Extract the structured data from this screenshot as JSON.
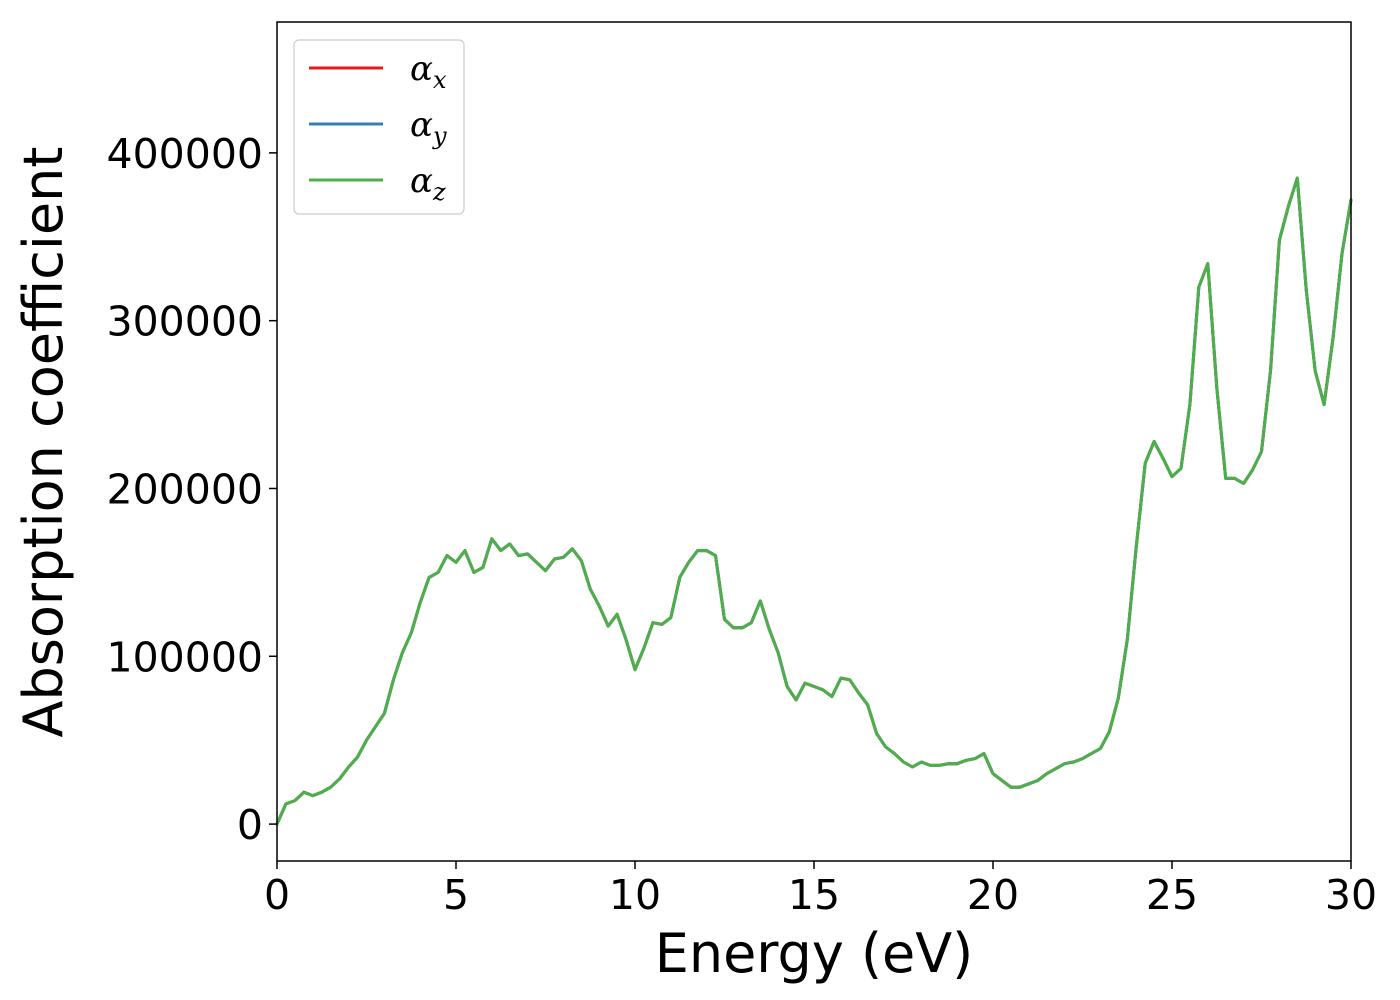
{
  "chart_data": {
    "type": "line",
    "xlabel": "Energy (eV)",
    "ylabel": "Absorption coefficient",
    "xlim": [
      0,
      30
    ],
    "ylim": [
      -22000,
      478000
    ],
    "xticks": [
      0,
      5,
      10,
      15,
      20,
      25,
      30
    ],
    "yticks": [
      0,
      100000,
      200000,
      300000,
      400000
    ],
    "grid": false,
    "legend_position": "top-left",
    "x": [
      0,
      0.25,
      0.5,
      0.75,
      1.0,
      1.25,
      1.5,
      1.75,
      2.0,
      2.25,
      2.5,
      2.75,
      3.0,
      3.25,
      3.5,
      3.75,
      4.0,
      4.25,
      4.5,
      4.75,
      5.0,
      5.25,
      5.5,
      5.75,
      6.0,
      6.25,
      6.5,
      6.75,
      7.0,
      7.25,
      7.5,
      7.75,
      8.0,
      8.25,
      8.5,
      8.75,
      9.0,
      9.25,
      9.5,
      9.75,
      10.0,
      10.25,
      10.5,
      10.75,
      11.0,
      11.25,
      11.5,
      11.75,
      12.0,
      12.25,
      12.5,
      12.75,
      13.0,
      13.25,
      13.5,
      13.75,
      14.0,
      14.25,
      14.5,
      14.75,
      15.0,
      15.25,
      15.5,
      15.75,
      16.0,
      16.25,
      16.5,
      16.75,
      17.0,
      17.25,
      17.5,
      17.75,
      18.0,
      18.25,
      18.5,
      18.75,
      19.0,
      19.25,
      19.5,
      19.75,
      20.0,
      20.25,
      20.5,
      20.75,
      21.0,
      21.25,
      21.5,
      21.75,
      22.0,
      22.25,
      22.5,
      22.75,
      23.0,
      23.25,
      23.5,
      23.75,
      24.0,
      24.25,
      24.5,
      24.75,
      25.0,
      25.25,
      25.5,
      25.75,
      26.0,
      26.25,
      26.5,
      26.75,
      27.0,
      27.25,
      27.5,
      27.75,
      28.0,
      28.25,
      28.5,
      28.75,
      29.0,
      29.25,
      29.5,
      29.75,
      30.0
    ],
    "series": [
      {
        "name_base": "α",
        "name_sub": "x",
        "color": "#e41a1c",
        "values": [
          0,
          12000,
          14000,
          19000,
          17000,
          19000,
          22000,
          27000,
          34000,
          40000,
          50000,
          58000,
          66000,
          86000,
          102000,
          114000,
          132000,
          147000,
          150000,
          160000,
          156000,
          163000,
          150000,
          153000,
          170000,
          163000,
          167000,
          160000,
          161000,
          156000,
          151000,
          158000,
          159000,
          164000,
          157000,
          140000,
          130000,
          118000,
          125000,
          110000,
          92000,
          105000,
          120000,
          119000,
          123000,
          147000,
          156000,
          163000,
          163000,
          160000,
          122000,
          117000,
          117000,
          120000,
          133000,
          116000,
          102000,
          82000,
          74000,
          84000,
          82000,
          80000,
          76000,
          87000,
          86000,
          78000,
          71000,
          54000,
          46000,
          42000,
          37000,
          34000,
          37000,
          35000,
          35000,
          36000,
          36000,
          38000,
          39000,
          42000,
          30000,
          26000,
          22000,
          22000,
          24000,
          26000,
          30000,
          33000,
          36000,
          37000,
          39000,
          42000,
          45000,
          55000,
          75000,
          110000,
          165000,
          215000,
          228000,
          218000,
          207000,
          212000,
          250000,
          320000,
          334000,
          260000,
          206000,
          206000,
          203000,
          211000,
          222000,
          270000,
          348000,
          368000,
          385000,
          318000,
          270000,
          250000,
          290000,
          340000,
          372000
        ]
      },
      {
        "name_base": "α",
        "name_sub": "y",
        "color": "#377eb8",
        "values": [
          0,
          12000,
          14000,
          19000,
          17000,
          19000,
          22000,
          27000,
          34000,
          40000,
          50000,
          58000,
          66000,
          86000,
          102000,
          114000,
          132000,
          147000,
          150000,
          160000,
          156000,
          163000,
          150000,
          153000,
          170000,
          163000,
          167000,
          160000,
          161000,
          156000,
          151000,
          158000,
          159000,
          164000,
          157000,
          140000,
          130000,
          118000,
          125000,
          110000,
          92000,
          105000,
          120000,
          119000,
          123000,
          147000,
          156000,
          163000,
          163000,
          160000,
          122000,
          117000,
          117000,
          120000,
          133000,
          116000,
          102000,
          82000,
          74000,
          84000,
          82000,
          80000,
          76000,
          87000,
          86000,
          78000,
          71000,
          54000,
          46000,
          42000,
          37000,
          34000,
          37000,
          35000,
          35000,
          36000,
          36000,
          38000,
          39000,
          42000,
          30000,
          26000,
          22000,
          22000,
          24000,
          26000,
          30000,
          33000,
          36000,
          37000,
          39000,
          42000,
          45000,
          55000,
          75000,
          110000,
          165000,
          215000,
          228000,
          218000,
          207000,
          212000,
          250000,
          320000,
          334000,
          260000,
          206000,
          206000,
          203000,
          211000,
          222000,
          270000,
          348000,
          368000,
          385000,
          318000,
          270000,
          250000,
          290000,
          340000,
          372000
        ]
      },
      {
        "name_base": "α",
        "name_sub": "z",
        "color": "#4daf4a",
        "values": [
          0,
          12000,
          14000,
          19000,
          17000,
          19000,
          22000,
          27000,
          34000,
          40000,
          50000,
          58000,
          66000,
          86000,
          102000,
          114000,
          132000,
          147000,
          150000,
          160000,
          156000,
          163000,
          150000,
          153000,
          170000,
          163000,
          167000,
          160000,
          161000,
          156000,
          151000,
          158000,
          159000,
          164000,
          157000,
          140000,
          130000,
          118000,
          125000,
          110000,
          92000,
          105000,
          120000,
          119000,
          123000,
          147000,
          156000,
          163000,
          163000,
          160000,
          122000,
          117000,
          117000,
          120000,
          133000,
          116000,
          102000,
          82000,
          74000,
          84000,
          82000,
          80000,
          76000,
          87000,
          86000,
          78000,
          71000,
          54000,
          46000,
          42000,
          37000,
          34000,
          37000,
          35000,
          35000,
          36000,
          36000,
          38000,
          39000,
          42000,
          30000,
          26000,
          22000,
          22000,
          24000,
          26000,
          30000,
          33000,
          36000,
          37000,
          39000,
          42000,
          45000,
          55000,
          75000,
          110000,
          165000,
          215000,
          228000,
          218000,
          207000,
          212000,
          250000,
          320000,
          334000,
          260000,
          206000,
          206000,
          203000,
          211000,
          222000,
          270000,
          348000,
          368000,
          385000,
          318000,
          270000,
          250000,
          290000,
          340000,
          372000
        ]
      }
    ]
  }
}
